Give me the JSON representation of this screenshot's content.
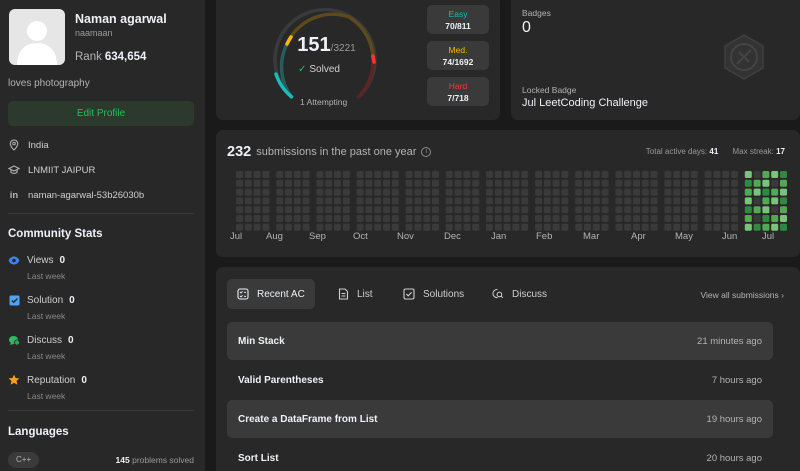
{
  "profile": {
    "name": "Naman agarwal",
    "username": "naamaan",
    "rank_label": "Rank",
    "rank_value": "634,654",
    "bio": "loves photography",
    "edit_label": "Edit Profile",
    "location": "India",
    "school": "LNMIIT JAIPUR",
    "linkedin": "naman-agarwal-53b26030b"
  },
  "community": {
    "title": "Community Stats",
    "items": [
      {
        "label": "Views",
        "value": "0",
        "sub": "Last week",
        "icon": "eye-icon",
        "color": "#3b82f6"
      },
      {
        "label": "Solution",
        "value": "0",
        "sub": "Last week",
        "icon": "solution-icon",
        "color": "#4da3ff"
      },
      {
        "label": "Discuss",
        "value": "0",
        "sub": "Last week",
        "icon": "discuss-icon",
        "color": "#2cbb5d"
      },
      {
        "label": "Reputation",
        "value": "0",
        "sub": "Last week",
        "icon": "star-icon",
        "color": "#ffa116"
      }
    ]
  },
  "languages": {
    "title": "Languages",
    "items": [
      {
        "name": "C++",
        "count": "145",
        "suffix": "problems solved"
      }
    ]
  },
  "solved": {
    "count": "151",
    "total": "/3221",
    "label": "Solved",
    "attempting": "1 Attempting",
    "progress": 0.047,
    "difficulties": [
      {
        "label": "Easy",
        "count": "70/811",
        "color": "#1cbaba"
      },
      {
        "label": "Med.",
        "count": "74/1692",
        "color": "#ffb700"
      },
      {
        "label": "Hard",
        "count": "7/718",
        "color": "#f63737"
      }
    ]
  },
  "badges": {
    "title": "Badges",
    "count": "0",
    "locked_label": "Locked Badge",
    "locked_name": "Jul LeetCoding Challenge"
  },
  "calendar": {
    "count": "232",
    "label": "submissions in the past one year",
    "active_days_label": "Total active days:",
    "active_days": "41",
    "max_streak_label": "Max streak:",
    "max_streak": "17",
    "months": [
      "Jul",
      "Aug",
      "Sep",
      "Oct",
      "Nov",
      "Dec",
      "Jan",
      "Feb",
      "Mar",
      "Apr",
      "May",
      "Jun",
      "Jul"
    ]
  },
  "recent": {
    "tabs": [
      {
        "label": "Recent AC",
        "icon": "recent-ac-icon",
        "active": true
      },
      {
        "label": "List",
        "icon": "list-icon",
        "active": false
      },
      {
        "label": "Solutions",
        "icon": "solutions-icon",
        "active": false
      },
      {
        "label": "Discuss",
        "icon": "discuss-search-icon",
        "active": false
      }
    ],
    "view_all": "View all submissions",
    "items": [
      {
        "title": "Min Stack",
        "time": "21 minutes ago"
      },
      {
        "title": "Valid Parentheses",
        "time": "7 hours ago"
      },
      {
        "title": "Create a DataFrame from List",
        "time": "19 hours ago"
      },
      {
        "title": "Sort List",
        "time": "20 hours ago"
      }
    ]
  }
}
